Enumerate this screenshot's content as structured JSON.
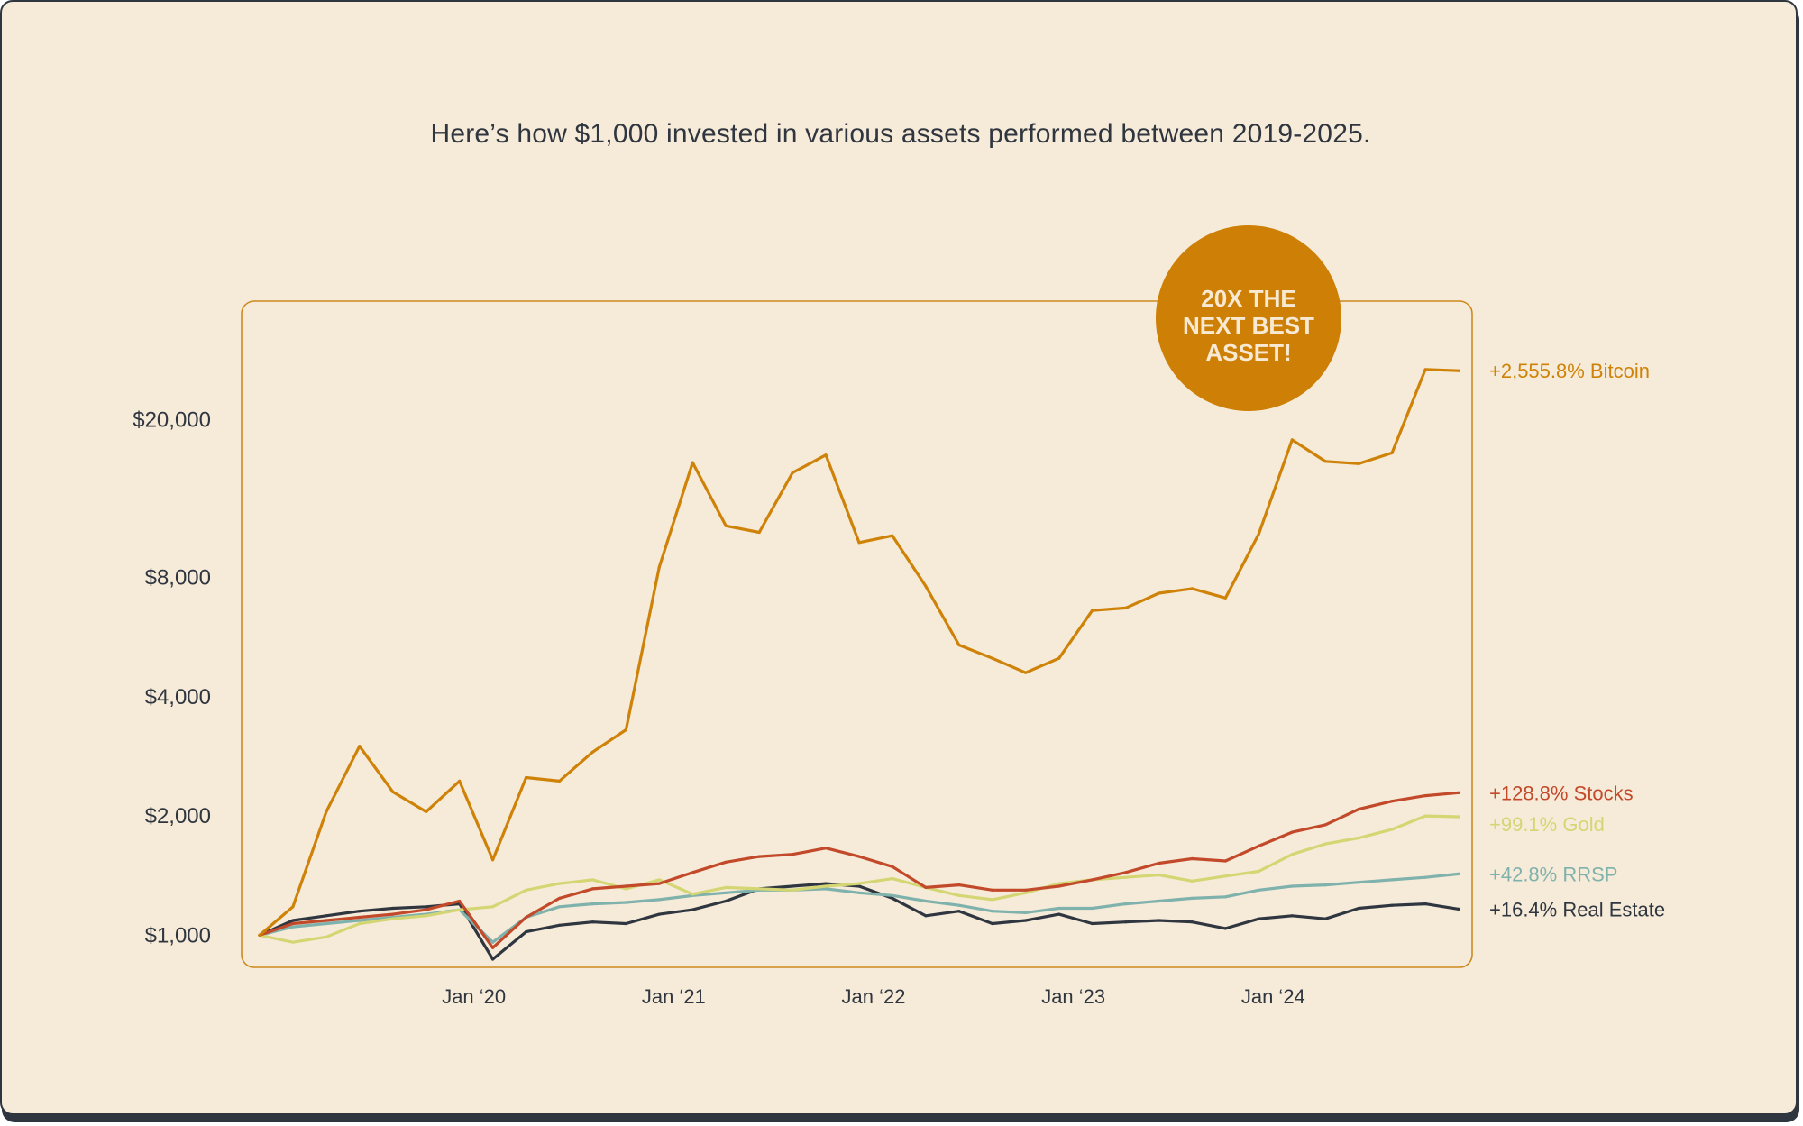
{
  "title": "Here’s how $1,000 invested in various assets performed between 2019-2025.",
  "badge": {
    "lines": [
      "20X THE",
      "NEXT BEST",
      "ASSET!"
    ],
    "color": "#cd7f06"
  },
  "chart_data": {
    "type": "line",
    "title": "Here’s how $1,000 invested in various assets performed between 2019-2025.",
    "xlabel": "",
    "ylabel": "",
    "y_scale": "log",
    "ylim": [
      870,
      31000
    ],
    "xlim": [
      "2019-01",
      "2025-01"
    ],
    "y_ticks": [
      {
        "value": 1000,
        "label": "$1,000"
      },
      {
        "value": 2000,
        "label": "$2,000"
      },
      {
        "value": 4000,
        "label": "$4,000"
      },
      {
        "value": 8000,
        "label": "$8,000"
      },
      {
        "value": 20000,
        "label": "$20,000"
      }
    ],
    "x_ticks": [
      {
        "value": "2020-01",
        "label": "Jan ‘20"
      },
      {
        "value": "2021-01",
        "label": "Jan ‘21"
      },
      {
        "value": "2022-01",
        "label": "Jan ‘22"
      },
      {
        "value": "2023-01",
        "label": "Jan ‘23"
      },
      {
        "value": "2024-01",
        "label": "Jan ‘24"
      }
    ],
    "grid": false,
    "x": [
      "2019-01",
      "2019-03",
      "2019-05",
      "2019-07",
      "2019-09",
      "2019-11",
      "2020-01",
      "2020-03",
      "2020-05",
      "2020-07",
      "2020-09",
      "2020-11",
      "2021-01",
      "2021-03",
      "2021-05",
      "2021-07",
      "2021-09",
      "2021-11",
      "2022-01",
      "2022-03",
      "2022-05",
      "2022-07",
      "2022-09",
      "2022-11",
      "2023-01",
      "2023-03",
      "2023-05",
      "2023-07",
      "2023-09",
      "2023-11",
      "2024-01",
      "2024-03",
      "2024-05",
      "2024-07",
      "2024-09",
      "2024-11",
      "2025-01"
    ],
    "series": [
      {
        "name": "Bitcoin",
        "label": "+2,555.8% Bitcoin",
        "color": "#cf8208",
        "values": [
          1000,
          1180,
          2050,
          3000,
          2300,
          2050,
          2450,
          1550,
          2500,
          2450,
          2900,
          3300,
          8500,
          15600,
          10800,
          10400,
          14700,
          16300,
          9800,
          10200,
          7600,
          5400,
          5000,
          4600,
          5000,
          6600,
          6700,
          7300,
          7500,
          7100,
          10300,
          17800,
          15700,
          15500,
          16500,
          26800,
          26600
        ]
      },
      {
        "name": "Stocks",
        "label": "+128.8% Stocks",
        "color": "#c2492a",
        "values": [
          1000,
          1070,
          1090,
          1110,
          1130,
          1160,
          1220,
          930,
          1110,
          1240,
          1310,
          1330,
          1350,
          1440,
          1530,
          1580,
          1600,
          1660,
          1580,
          1490,
          1320,
          1340,
          1300,
          1300,
          1330,
          1380,
          1440,
          1520,
          1560,
          1540,
          1680,
          1820,
          1900,
          2080,
          2180,
          2250,
          2290
        ]
      },
      {
        "name": "Gold",
        "label": "+99.1% Gold",
        "color": "#d4d674",
        "values": [
          1000,
          960,
          990,
          1070,
          1100,
          1120,
          1160,
          1180,
          1300,
          1350,
          1380,
          1310,
          1380,
          1270,
          1320,
          1310,
          1300,
          1330,
          1350,
          1390,
          1320,
          1260,
          1230,
          1280,
          1350,
          1380,
          1400,
          1420,
          1370,
          1410,
          1450,
          1600,
          1700,
          1760,
          1850,
          2000,
          1991
        ]
      },
      {
        "name": "RRSP",
        "label": "+42.8% RRSP",
        "color": "#7fb2ac",
        "values": [
          1000,
          1050,
          1070,
          1090,
          1110,
          1130,
          1160,
          960,
          1110,
          1180,
          1200,
          1210,
          1230,
          1260,
          1280,
          1300,
          1300,
          1310,
          1280,
          1260,
          1220,
          1190,
          1150,
          1140,
          1170,
          1170,
          1200,
          1220,
          1240,
          1250,
          1300,
          1330,
          1340,
          1360,
          1380,
          1400,
          1428
        ]
      },
      {
        "name": "Real Estate",
        "label": "+16.4% Real Estate",
        "color": "#2f3640",
        "values": [
          1000,
          1090,
          1120,
          1150,
          1170,
          1180,
          1200,
          870,
          1020,
          1060,
          1080,
          1070,
          1130,
          1160,
          1220,
          1310,
          1330,
          1350,
          1330,
          1240,
          1120,
          1150,
          1070,
          1090,
          1130,
          1070,
          1080,
          1090,
          1080,
          1040,
          1100,
          1120,
          1100,
          1170,
          1190,
          1200,
          1164
        ]
      }
    ]
  },
  "colors": {
    "background": "#f6ebd9",
    "frame": "#cd8a1e",
    "text": "#30363f"
  }
}
